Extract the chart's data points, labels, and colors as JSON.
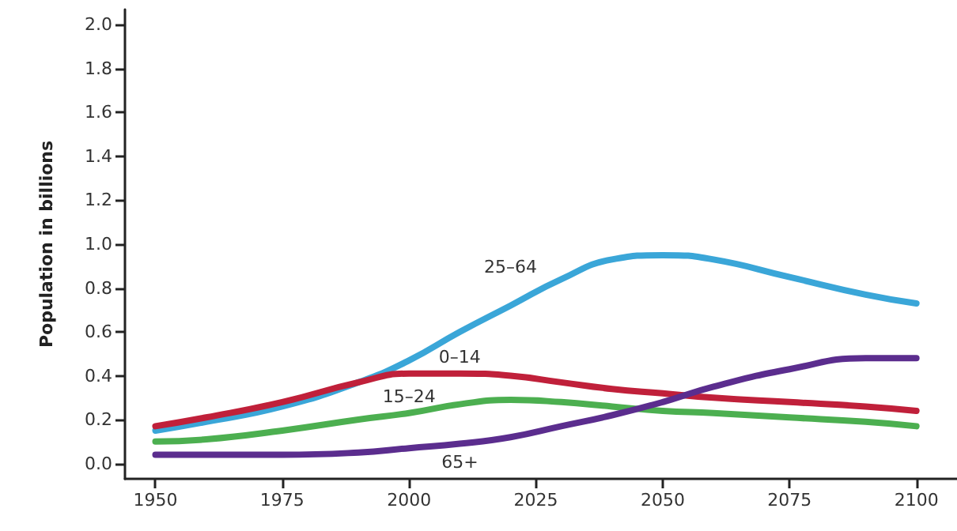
{
  "chart_data": {
    "type": "line",
    "ylabel": "Population in billions",
    "x": [
      1950,
      1960,
      1975,
      1990,
      2000,
      2010,
      2020,
      2030,
      2040,
      2050,
      2060,
      2075,
      2090,
      2100
    ],
    "series": [
      {
        "name": "25–64",
        "color": "#3aa6d8",
        "values": [
          0.15,
          0.19,
          0.26,
          0.37,
          0.47,
          0.6,
          0.72,
          0.84,
          0.93,
          0.95,
          0.93,
          0.85,
          0.77,
          0.73
        ]
      },
      {
        "name": "0–14",
        "color": "#c0203a",
        "values": [
          0.17,
          0.21,
          0.28,
          0.37,
          0.41,
          0.41,
          0.4,
          0.37,
          0.34,
          0.32,
          0.3,
          0.28,
          0.26,
          0.24
        ]
      },
      {
        "name": "15–24",
        "color": "#4caf50",
        "values": [
          0.1,
          0.11,
          0.15,
          0.2,
          0.23,
          0.27,
          0.29,
          0.28,
          0.26,
          0.24,
          0.23,
          0.21,
          0.19,
          0.17
        ]
      },
      {
        "name": "65+",
        "color": "#5b2d8e",
        "values": [
          0.04,
          0.04,
          0.04,
          0.05,
          0.07,
          0.09,
          0.12,
          0.17,
          0.22,
          0.28,
          0.35,
          0.43,
          0.48,
          0.48
        ]
      }
    ],
    "xlim": [
      1944,
      2108
    ],
    "xticks": [
      1950,
      1975,
      2000,
      2025,
      2050,
      2075,
      2100
    ],
    "ylim": [
      -0.07,
      2.07
    ],
    "yticks": [
      {
        "value": 0,
        "label": "0.0"
      },
      0.2,
      0.4,
      0.6,
      0.8,
      {
        "value": 1,
        "label": "1.0"
      },
      1.2,
      1.4,
      1.6,
      1.8,
      {
        "value": 2,
        "label": "2.0"
      }
    ],
    "grid": false,
    "legend": false,
    "marker": "none",
    "line_style": "solid"
  }
}
